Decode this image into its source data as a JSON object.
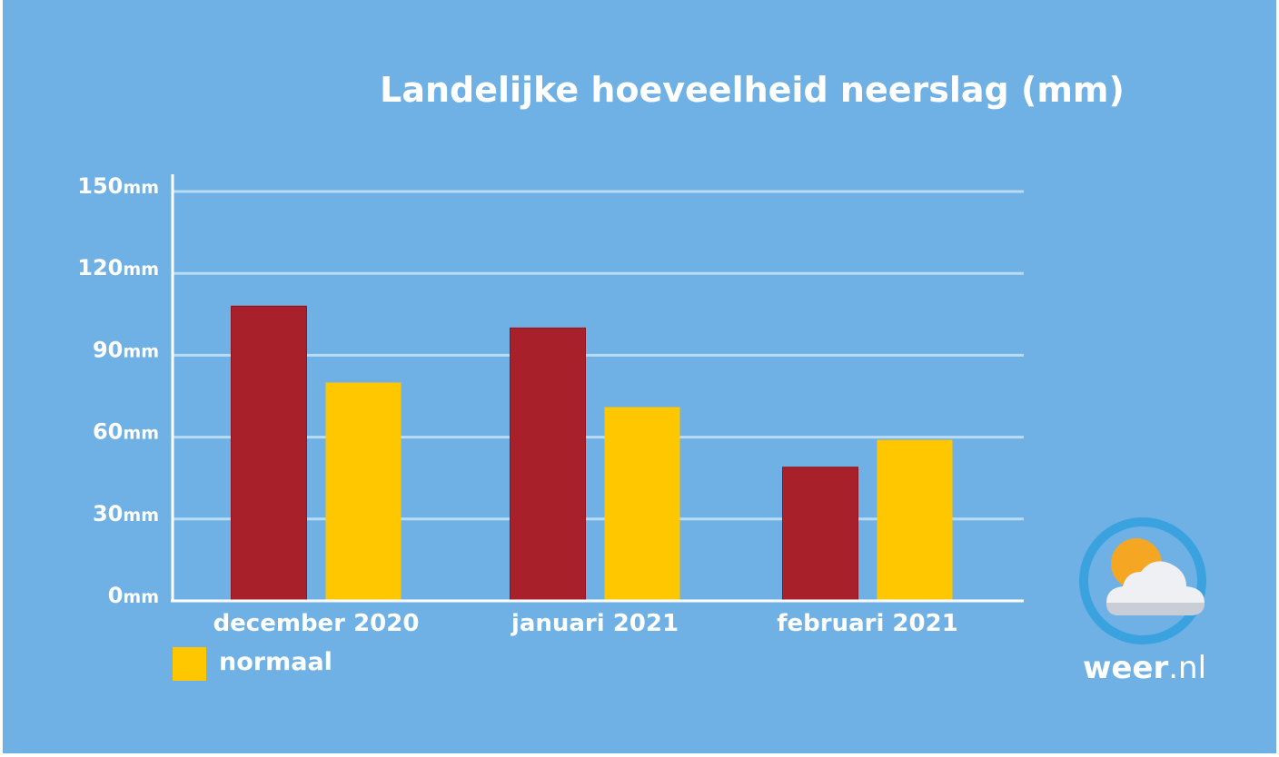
{
  "chart_data": {
    "type": "bar",
    "title": "Landelijke hoeveelheid neerslag (mm)",
    "categories": [
      "december 2020",
      "januari 2021",
      "februari 2021"
    ],
    "series": [
      {
        "values": [
          108,
          100,
          49
        ],
        "color": "#a8212a"
      },
      {
        "name": "normaal",
        "values": [
          80,
          71,
          59
        ],
        "color": "#ffc700"
      }
    ],
    "ylim": [
      0,
      150
    ],
    "y_ticks": [
      {
        "value": 0,
        "num": "0",
        "unit": "mm"
      },
      {
        "value": 30,
        "num": "30",
        "unit": "mm"
      },
      {
        "value": 60,
        "num": "60",
        "unit": "mm"
      },
      {
        "value": 90,
        "num": "90",
        "unit": "mm"
      },
      {
        "value": 120,
        "num": "120",
        "unit": "mm"
      },
      {
        "value": 150,
        "num": "150",
        "unit": "mm"
      }
    ],
    "grid": true,
    "legend_position": "bottom-left"
  },
  "colors": {
    "background": "#6fb1e4",
    "gridline": "#b9dbf3",
    "axis": "#ffffff",
    "text": "#ffffff"
  },
  "logo": {
    "icon": "sun-cloud-icon",
    "brand_main": "weer",
    "brand_suffix": ".nl"
  }
}
